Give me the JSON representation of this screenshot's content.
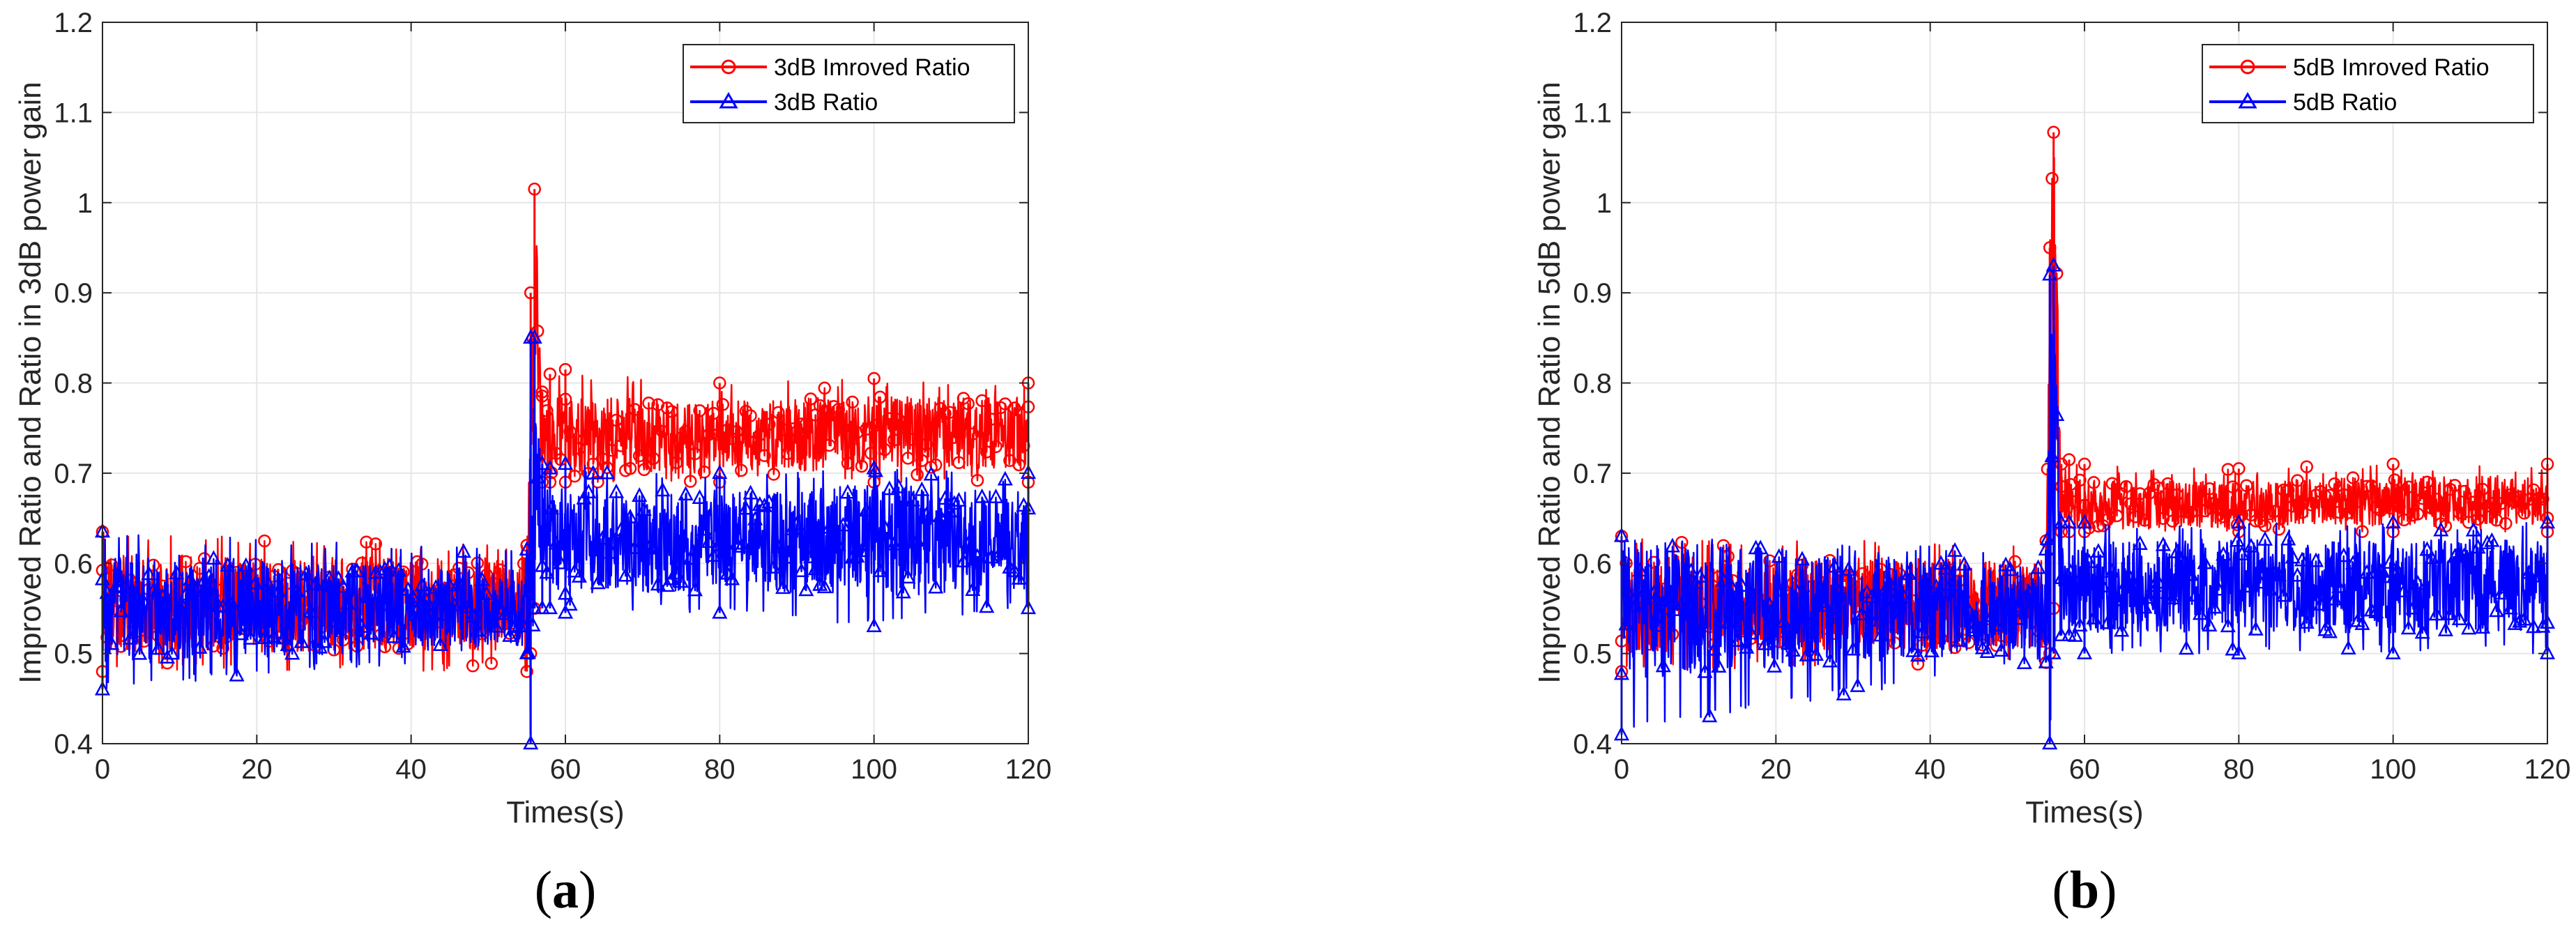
{
  "chart_data": [
    {
      "type": "line",
      "panel_label": {
        "open": "(",
        "letter": "a",
        "close": ")"
      },
      "xlabel": "Times(s)",
      "ylabel": "Improved Ratio and Ratio in 3dB power gain",
      "xlim": [
        0,
        120
      ],
      "ylim": [
        0.4,
        1.2
      ],
      "xticks": [
        0,
        20,
        40,
        60,
        80,
        100,
        120
      ],
      "yticks": [
        0.4,
        0.5,
        0.6,
        0.7,
        0.8,
        0.9,
        1,
        1.1,
        1.2
      ],
      "xtick_labels": [
        "0",
        "20",
        "40",
        "60",
        "80",
        "100",
        "120"
      ],
      "ytick_labels": [
        "0.4",
        "0.5",
        "0.6",
        "0.7",
        "0.8",
        "0.9",
        "1",
        "1.1",
        "1.2"
      ],
      "grid": true,
      "legend_position": "top-right",
      "series": [
        {
          "name": "3dB Imroved Ratio",
          "color": "#ff0000",
          "marker": "circle",
          "x": [
            0,
            55,
            55.5,
            56,
            57,
            58,
            60,
            80,
            100,
            120
          ],
          "mean": [
            0.555,
            0.555,
            0.8,
            0.9,
            0.74,
            0.74,
            0.74,
            0.74,
            0.745,
            0.745
          ],
          "min": [
            0.48,
            0.48,
            0.5,
            0.55,
            0.69,
            0.69,
            0.69,
            0.69,
            0.69,
            0.69
          ],
          "max": [
            0.635,
            0.62,
            0.9,
            1.015,
            0.79,
            0.81,
            0.815,
            0.8,
            0.805,
            0.8
          ]
        },
        {
          "name": "3dB Ratio",
          "color": "#0000ff",
          "marker": "triangle",
          "x": [
            0,
            55,
            55.5,
            56,
            57,
            58,
            60,
            80,
            100,
            120
          ],
          "mean": [
            0.55,
            0.55,
            0.6,
            0.7,
            0.63,
            0.625,
            0.625,
            0.625,
            0.625,
            0.625
          ],
          "min": [
            0.46,
            0.5,
            0.4,
            0.55,
            0.55,
            0.55,
            0.545,
            0.545,
            0.53,
            0.55
          ],
          "max": [
            0.635,
            0.615,
            0.85,
            0.85,
            0.71,
            0.705,
            0.71,
            0.7,
            0.705,
            0.7
          ]
        }
      ]
    },
    {
      "type": "line",
      "panel_label": {
        "open": "(",
        "letter": "b",
        "close": ")"
      },
      "xlabel": "Times(s)",
      "ylabel": "Improved Ratio and Ratio in 5dB power gain",
      "xlim": [
        0,
        120
      ],
      "ylim": [
        0.4,
        1.2
      ],
      "xticks": [
        0,
        20,
        40,
        60,
        80,
        100,
        120
      ],
      "yticks": [
        0.4,
        0.5,
        0.6,
        0.7,
        0.8,
        0.9,
        1,
        1.1,
        1.2
      ],
      "xtick_labels": [
        "0",
        "20",
        "40",
        "60",
        "80",
        "100",
        "120"
      ],
      "ytick_labels": [
        "0.4",
        "0.5",
        "0.6",
        "0.7",
        "0.8",
        "0.9",
        "1",
        "1.1",
        "1.2"
      ],
      "grid": true,
      "legend_position": "top-right",
      "series": [
        {
          "name": "5dB Imroved Ratio",
          "color": "#ff0000",
          "marker": "circle",
          "x": [
            0,
            55,
            55.5,
            56,
            57,
            58,
            60,
            80,
            100,
            120
          ],
          "mean": [
            0.555,
            0.555,
            0.85,
            0.95,
            0.67,
            0.665,
            0.665,
            0.665,
            0.67,
            0.67
          ],
          "min": [
            0.48,
            0.49,
            0.5,
            0.55,
            0.635,
            0.635,
            0.635,
            0.635,
            0.635,
            0.635
          ],
          "max": [
            0.63,
            0.625,
            0.95,
            1.078,
            0.71,
            0.715,
            0.71,
            0.705,
            0.71,
            0.71
          ]
        },
        {
          "name": "5dB Ratio",
          "color": "#0000ff",
          "marker": "triangle",
          "x": [
            0,
            55,
            55.5,
            56,
            57,
            58,
            60,
            80,
            100,
            120
          ],
          "mean": [
            0.55,
            0.55,
            0.7,
            0.75,
            0.58,
            0.575,
            0.575,
            0.575,
            0.575,
            0.575
          ],
          "min": [
            0.41,
            0.49,
            0.4,
            0.5,
            0.52,
            0.52,
            0.5,
            0.5,
            0.5,
            0.5
          ],
          "max": [
            0.63,
            0.615,
            0.92,
            0.93,
            0.645,
            0.645,
            0.645,
            0.645,
            0.645,
            0.645
          ]
        }
      ]
    }
  ]
}
